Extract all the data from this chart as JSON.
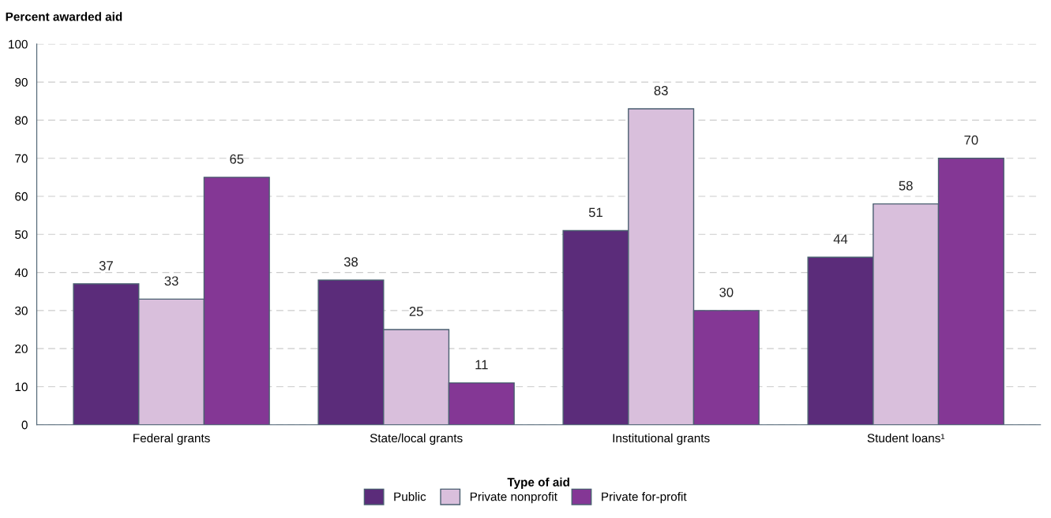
{
  "chart_data": {
    "type": "bar",
    "ylabel": "Percent awarded aid",
    "xlabel": "Type of aid",
    "categories": [
      "Federal grants",
      "State/local grants",
      "Institutional grants",
      "Student loans¹"
    ],
    "series": [
      {
        "name": "Public",
        "color": "#5b2c7a",
        "values": [
          37,
          38,
          51,
          44
        ]
      },
      {
        "name": "Private nonprofit",
        "color": "#d9bfdc",
        "values": [
          33,
          25,
          83,
          58
        ]
      },
      {
        "name": "Private for-profit",
        "color": "#843795",
        "values": [
          65,
          11,
          30,
          70
        ]
      }
    ],
    "ylim": [
      0,
      100
    ],
    "yticks": [
      0,
      10,
      20,
      30,
      40,
      50,
      60,
      70,
      80,
      90,
      100
    ],
    "grid": "y",
    "legend": "bottom",
    "data_labels": true
  }
}
